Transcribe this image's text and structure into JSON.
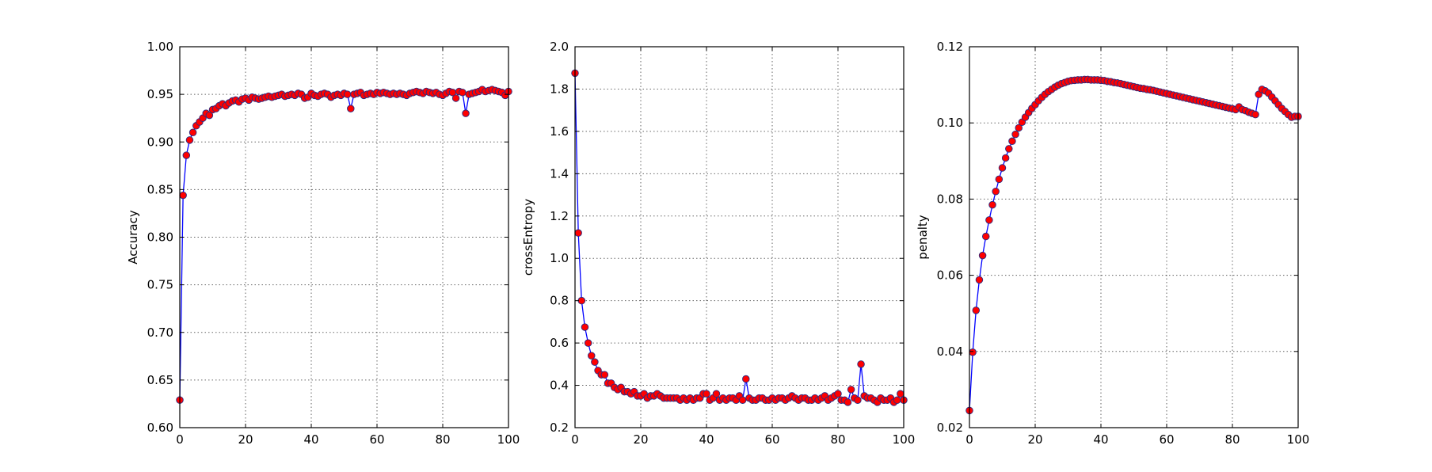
{
  "colors": {
    "line": "#0000ff",
    "marker_fill": "#ff0000",
    "marker_edge": "#2b2b80",
    "background": "#ffffff"
  },
  "chart_data": [
    {
      "type": "line",
      "title": "",
      "xlabel": "",
      "ylabel": "Accuracy",
      "xlim": [
        0,
        100
      ],
      "ylim": [
        0.6,
        1.0
      ],
      "xticks": [
        0,
        20,
        40,
        60,
        80,
        100
      ],
      "yticks": [
        0.6,
        0.65,
        0.7,
        0.75,
        0.8,
        0.85,
        0.9,
        0.95,
        1.0
      ],
      "ytick_labels": [
        "0.60",
        "0.65",
        "0.70",
        "0.75",
        "0.80",
        "0.85",
        "0.90",
        "0.95",
        "1.00"
      ],
      "grid": true,
      "markers": true,
      "x": [
        0,
        1,
        2,
        3,
        4,
        5,
        6,
        7,
        8,
        9,
        10,
        11,
        12,
        13,
        14,
        15,
        16,
        17,
        18,
        19,
        20,
        21,
        22,
        23,
        24,
        25,
        26,
        27,
        28,
        29,
        30,
        31,
        32,
        33,
        34,
        35,
        36,
        37,
        38,
        39,
        40,
        41,
        42,
        43,
        44,
        45,
        46,
        47,
        48,
        49,
        50,
        51,
        52,
        53,
        54,
        55,
        56,
        57,
        58,
        59,
        60,
        61,
        62,
        63,
        64,
        65,
        66,
        67,
        68,
        69,
        70,
        71,
        72,
        73,
        74,
        75,
        76,
        77,
        78,
        79,
        80,
        81,
        82,
        83,
        84,
        85,
        86,
        87,
        88,
        89,
        90,
        91,
        92,
        93,
        94,
        95,
        96,
        97,
        98,
        99,
        100
      ],
      "y": [
        0.629,
        0.844,
        0.886,
        0.902,
        0.91,
        0.917,
        0.921,
        0.925,
        0.93,
        0.928,
        0.934,
        0.935,
        0.938,
        0.94,
        0.938,
        0.941,
        0.943,
        0.944,
        0.942,
        0.945,
        0.946,
        0.944,
        0.947,
        0.946,
        0.945,
        0.946,
        0.947,
        0.948,
        0.947,
        0.948,
        0.949,
        0.95,
        0.948,
        0.949,
        0.95,
        0.949,
        0.951,
        0.95,
        0.946,
        0.947,
        0.951,
        0.949,
        0.948,
        0.95,
        0.951,
        0.95,
        0.947,
        0.949,
        0.95,
        0.949,
        0.951,
        0.95,
        0.935,
        0.95,
        0.951,
        0.952,
        0.949,
        0.95,
        0.951,
        0.95,
        0.952,
        0.951,
        0.952,
        0.951,
        0.95,
        0.951,
        0.95,
        0.951,
        0.95,
        0.949,
        0.951,
        0.952,
        0.953,
        0.952,
        0.951,
        0.953,
        0.952,
        0.951,
        0.952,
        0.95,
        0.949,
        0.951,
        0.953,
        0.952,
        0.946,
        0.953,
        0.952,
        0.93,
        0.95,
        0.951,
        0.952,
        0.953,
        0.955,
        0.953,
        0.954,
        0.955,
        0.954,
        0.953,
        0.952,
        0.949,
        0.953
      ]
    },
    {
      "type": "line",
      "title": "",
      "xlabel": "",
      "ylabel": "crossEntropy",
      "xlim": [
        0,
        100
      ],
      "ylim": [
        0.2,
        2.0
      ],
      "xticks": [
        0,
        20,
        40,
        60,
        80,
        100
      ],
      "yticks": [
        0.2,
        0.4,
        0.6,
        0.8,
        1.0,
        1.2,
        1.4,
        1.6,
        1.8,
        2.0
      ],
      "ytick_labels": [
        "0.2",
        "0.4",
        "0.6",
        "0.8",
        "1.0",
        "1.2",
        "1.4",
        "1.6",
        "1.8",
        "2.0"
      ],
      "grid": true,
      "markers": true,
      "x": [
        0,
        1,
        2,
        3,
        4,
        5,
        6,
        7,
        8,
        9,
        10,
        11,
        12,
        13,
        14,
        15,
        16,
        17,
        18,
        19,
        20,
        21,
        22,
        23,
        24,
        25,
        26,
        27,
        28,
        29,
        30,
        31,
        32,
        33,
        34,
        35,
        36,
        37,
        38,
        39,
        40,
        41,
        42,
        43,
        44,
        45,
        46,
        47,
        48,
        49,
        50,
        51,
        52,
        53,
        54,
        55,
        56,
        57,
        58,
        59,
        60,
        61,
        62,
        63,
        64,
        65,
        66,
        67,
        68,
        69,
        70,
        71,
        72,
        73,
        74,
        75,
        76,
        77,
        78,
        79,
        80,
        81,
        82,
        83,
        84,
        85,
        86,
        87,
        88,
        89,
        90,
        91,
        92,
        93,
        94,
        95,
        96,
        97,
        98,
        99,
        100
      ],
      "y": [
        1.875,
        1.12,
        0.8,
        0.675,
        0.6,
        0.54,
        0.51,
        0.47,
        0.45,
        0.45,
        0.41,
        0.41,
        0.39,
        0.38,
        0.39,
        0.37,
        0.37,
        0.36,
        0.37,
        0.35,
        0.35,
        0.36,
        0.34,
        0.35,
        0.35,
        0.36,
        0.35,
        0.34,
        0.34,
        0.34,
        0.34,
        0.34,
        0.33,
        0.34,
        0.33,
        0.34,
        0.33,
        0.34,
        0.34,
        0.36,
        0.36,
        0.33,
        0.34,
        0.36,
        0.33,
        0.34,
        0.33,
        0.34,
        0.34,
        0.33,
        0.35,
        0.33,
        0.43,
        0.34,
        0.33,
        0.33,
        0.34,
        0.34,
        0.33,
        0.33,
        0.34,
        0.33,
        0.34,
        0.34,
        0.33,
        0.34,
        0.35,
        0.34,
        0.33,
        0.34,
        0.34,
        0.33,
        0.33,
        0.34,
        0.33,
        0.34,
        0.35,
        0.33,
        0.34,
        0.35,
        0.36,
        0.33,
        0.33,
        0.32,
        0.38,
        0.34,
        0.33,
        0.5,
        0.35,
        0.34,
        0.34,
        0.33,
        0.32,
        0.34,
        0.33,
        0.33,
        0.34,
        0.32,
        0.33,
        0.36,
        0.33
      ]
    },
    {
      "type": "line",
      "title": "",
      "xlabel": "",
      "ylabel": "penalty",
      "xlim": [
        0,
        100
      ],
      "ylim": [
        0.02,
        0.12
      ],
      "xticks": [
        0,
        20,
        40,
        60,
        80,
        100
      ],
      "yticks": [
        0.02,
        0.04,
        0.06,
        0.08,
        0.1,
        0.12
      ],
      "ytick_labels": [
        "0.02",
        "0.04",
        "0.06",
        "0.08",
        "0.10",
        "0.12"
      ],
      "grid": true,
      "markers": true,
      "x": [
        0,
        1,
        2,
        3,
        4,
        5,
        6,
        7,
        8,
        9,
        10,
        11,
        12,
        13,
        14,
        15,
        16,
        17,
        18,
        19,
        20,
        21,
        22,
        23,
        24,
        25,
        26,
        27,
        28,
        29,
        30,
        31,
        32,
        33,
        34,
        35,
        36,
        37,
        38,
        39,
        40,
        41,
        42,
        43,
        44,
        45,
        46,
        47,
        48,
        49,
        50,
        51,
        52,
        53,
        54,
        55,
        56,
        57,
        58,
        59,
        60,
        61,
        62,
        63,
        64,
        65,
        66,
        67,
        68,
        69,
        70,
        71,
        72,
        73,
        74,
        75,
        76,
        77,
        78,
        79,
        80,
        81,
        82,
        83,
        84,
        85,
        86,
        87,
        88,
        89,
        90,
        91,
        92,
        93,
        94,
        95,
        96,
        97,
        98,
        99,
        100
      ],
      "y": [
        0.0245,
        0.0398,
        0.0508,
        0.0588,
        0.0652,
        0.0702,
        0.0745,
        0.0785,
        0.082,
        0.0852,
        0.0882,
        0.0908,
        0.0932,
        0.0952,
        0.097,
        0.0987,
        0.1002,
        0.1015,
        0.1027,
        0.1038,
        0.1048,
        0.1058,
        0.1067,
        0.1075,
        0.1082,
        0.1088,
        0.1094,
        0.1099,
        0.1103,
        0.1106,
        0.1109,
        0.1111,
        0.1112,
        0.1113,
        0.1113,
        0.1114,
        0.1114,
        0.1113,
        0.1113,
        0.1113,
        0.1112,
        0.1111,
        0.1109,
        0.1108,
        0.1106,
        0.1105,
        0.1103,
        0.1101,
        0.1099,
        0.1097,
        0.1095,
        0.1093,
        0.1091,
        0.109,
        0.1088,
        0.1087,
        0.1085,
        0.1083,
        0.1081,
        0.1079,
        0.1077,
        0.1075,
        0.1073,
        0.1071,
        0.1069,
        0.1067,
        0.1065,
        0.1063,
        0.1061,
        0.1059,
        0.1057,
        0.1055,
        0.1053,
        0.1051,
        0.1049,
        0.1047,
        0.1045,
        0.1043,
        0.1041,
        0.1039,
        0.1037,
        0.1035,
        0.1042,
        0.1035,
        0.1032,
        0.1028,
        0.1025,
        0.1022,
        0.1075,
        0.1088,
        0.1084,
        0.1078,
        0.1068,
        0.1058,
        0.1048,
        0.1038,
        0.103,
        0.1022,
        0.1015,
        0.1017,
        0.1017
      ]
    }
  ]
}
